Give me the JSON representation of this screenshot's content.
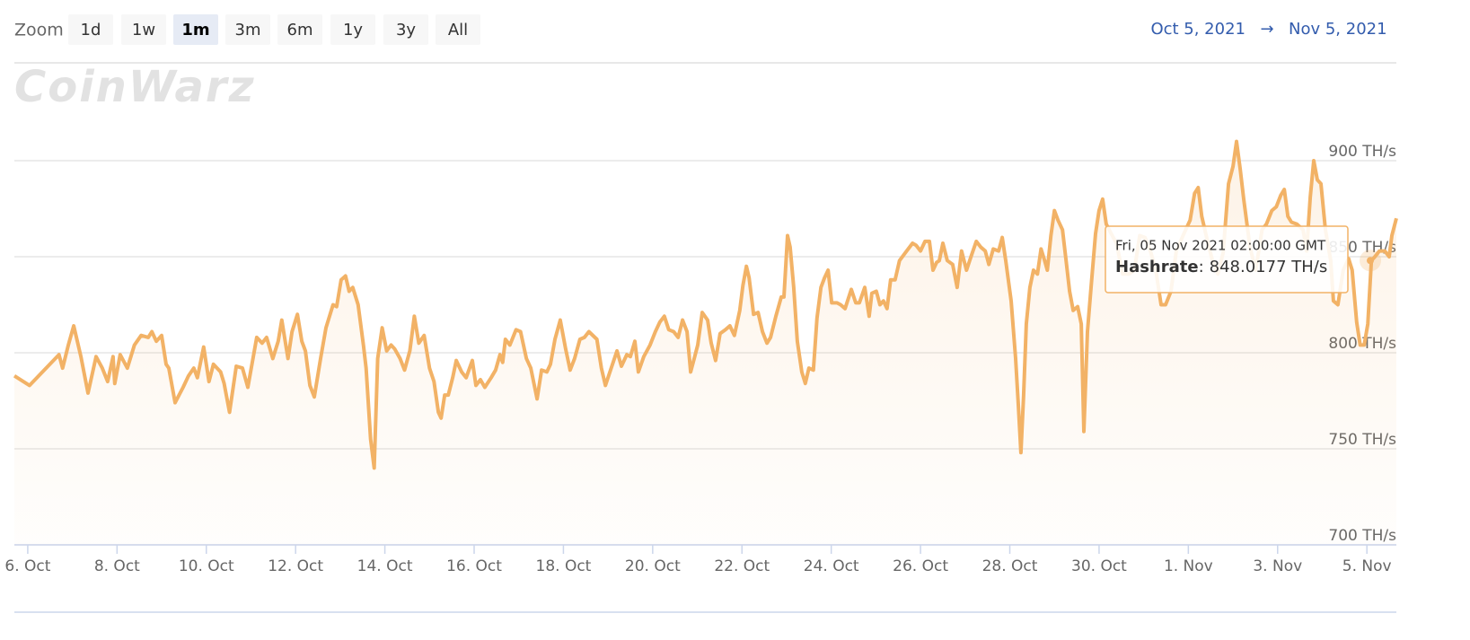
{
  "zoom": {
    "label": "Zoom",
    "buttons": [
      "1d",
      "1w",
      "1m",
      "3m",
      "6m",
      "1y",
      "3y",
      "All"
    ],
    "selected": "1m"
  },
  "range": {
    "from": "Oct 5, 2021",
    "arrow": "→",
    "to": "Nov 5, 2021"
  },
  "watermark": "CoinWarz",
  "chart_data": {
    "type": "area",
    "xlim": [
      5.7,
      36.66
    ],
    "xticks": [
      {
        "value": 6,
        "label": "6. Oct"
      },
      {
        "value": 8,
        "label": "8. Oct"
      },
      {
        "value": 10,
        "label": "10. Oct"
      },
      {
        "value": 12,
        "label": "12. Oct"
      },
      {
        "value": 14,
        "label": "14. Oct"
      },
      {
        "value": 16,
        "label": "16. Oct"
      },
      {
        "value": 18,
        "label": "18. Oct"
      },
      {
        "value": 20,
        "label": "20. Oct"
      },
      {
        "value": 22,
        "label": "22. Oct"
      },
      {
        "value": 24,
        "label": "24. Oct"
      },
      {
        "value": 26,
        "label": "26. Oct"
      },
      {
        "value": 28,
        "label": "28. Oct"
      },
      {
        "value": 30,
        "label": "30. Oct"
      },
      {
        "value": 32,
        "label": "1. Nov"
      },
      {
        "value": 34,
        "label": "3. Nov"
      },
      {
        "value": 36,
        "label": "5. Nov"
      }
    ],
    "ylim": [
      700,
      950
    ],
    "yticks": [
      {
        "value": 700,
        "label": "700 TH/s"
      },
      {
        "value": 750,
        "label": "750 TH/s"
      },
      {
        "value": 800,
        "label": "800 TH/s"
      },
      {
        "value": 850,
        "label": "850 TH/s"
      },
      {
        "value": 900,
        "label": "900 TH/s"
      }
    ],
    "grid": true,
    "series": [
      {
        "name": "Hashrate",
        "color": "#f2b266",
        "x": [
          5.7,
          6.04,
          6.7,
          6.78,
          6.91,
          7.03,
          7.19,
          7.35,
          7.53,
          7.67,
          7.79,
          7.91,
          7.95,
          8.07,
          8.23,
          8.39,
          8.54,
          8.7,
          8.78,
          8.88,
          9.0,
          9.1,
          9.16,
          9.3,
          9.48,
          9.6,
          9.72,
          9.8,
          9.94,
          10.06,
          10.16,
          10.32,
          10.4,
          10.52,
          10.67,
          10.81,
          10.93,
          11.13,
          11.25,
          11.35,
          11.49,
          11.61,
          11.69,
          11.83,
          11.92,
          12.04,
          12.14,
          12.22,
          12.32,
          12.42,
          12.56,
          12.68,
          12.84,
          12.92,
          13.02,
          13.12,
          13.2,
          13.28,
          13.4,
          13.52,
          13.58,
          13.68,
          13.76,
          13.84,
          13.94,
          14.04,
          14.14,
          14.22,
          14.34,
          14.44,
          14.56,
          14.66,
          14.76,
          14.88,
          15.0,
          15.1,
          15.2,
          15.26,
          15.34,
          15.42,
          15.52,
          15.6,
          15.72,
          15.82,
          15.96,
          16.04,
          16.14,
          16.24,
          16.38,
          16.48,
          16.58,
          16.64,
          16.7,
          16.8,
          16.94,
          17.04,
          17.17,
          17.27,
          17.41,
          17.51,
          17.63,
          17.71,
          17.81,
          17.93,
          18.05,
          18.15,
          18.25,
          18.37,
          18.47,
          18.57,
          18.75,
          18.85,
          18.94,
          19.1,
          19.2,
          19.3,
          19.42,
          19.5,
          19.6,
          19.68,
          19.8,
          19.94,
          20.06,
          20.16,
          20.26,
          20.36,
          20.47,
          20.57,
          20.67,
          20.77,
          20.85,
          20.93,
          21.01,
          21.11,
          21.23,
          21.31,
          21.41,
          21.51,
          21.63,
          21.73,
          21.83,
          21.95,
          22.02,
          22.1,
          22.16,
          22.26,
          22.36,
          22.46,
          22.56,
          22.64,
          22.76,
          22.88,
          22.94,
          23.02,
          23.08,
          23.16,
          23.24,
          23.34,
          23.42,
          23.5,
          23.6,
          23.68,
          23.77,
          23.85,
          23.93,
          24.01,
          24.13,
          24.21,
          24.31,
          24.45,
          24.55,
          24.63,
          24.75,
          24.85,
          24.91,
          25.01,
          25.09,
          25.17,
          25.25,
          25.33,
          25.43,
          25.53,
          25.69,
          25.82,
          25.9,
          26.0,
          26.1,
          26.2,
          26.28,
          26.36,
          26.42,
          26.5,
          26.6,
          26.72,
          26.82,
          26.92,
          27.03,
          27.13,
          27.25,
          27.35,
          27.45,
          27.53,
          27.63,
          27.75,
          27.83,
          27.91,
          28.03,
          28.13,
          28.19,
          28.25,
          28.31,
          28.37,
          28.45,
          28.53,
          28.62,
          28.7,
          28.78,
          28.84,
          28.92,
          29.0,
          29.08,
          29.18,
          29.26,
          29.34,
          29.42,
          29.52,
          29.6,
          29.66,
          29.74,
          29.82,
          29.92,
          30.0,
          30.08,
          30.16,
          30.27,
          30.39,
          30.53,
          30.67,
          30.79,
          30.91,
          31.03,
          31.15,
          31.27,
          31.39,
          31.49,
          31.61,
          31.73,
          31.9,
          32.04,
          32.14,
          32.22,
          32.3,
          32.44,
          32.54,
          32.66,
          32.78,
          32.9,
          33.0,
          33.08,
          33.16,
          33.24,
          33.38,
          33.51,
          33.65,
          33.75,
          33.87,
          33.97,
          34.07,
          34.15,
          34.23,
          34.31,
          34.43,
          34.57,
          34.65,
          34.73,
          34.81,
          34.89,
          34.97,
          35.07,
          35.19,
          35.25,
          35.35,
          35.47,
          35.59,
          35.67,
          35.77,
          35.85,
          35.94,
          36.02,
          36.1,
          36.18,
          36.28,
          36.4,
          36.5,
          36.56,
          36.66
        ],
        "values": [
          788,
          783,
          799,
          792,
          804,
          814,
          798,
          779,
          798,
          792,
          785,
          798,
          784,
          799,
          792,
          804,
          809,
          808,
          811,
          806,
          809,
          794,
          792,
          774,
          782,
          788,
          792,
          787,
          803,
          785,
          794,
          790,
          784,
          769,
          793,
          792,
          782,
          808,
          805,
          808,
          797,
          806,
          817,
          797,
          811,
          820,
          806,
          801,
          783,
          777,
          797,
          813,
          825,
          824,
          838,
          840,
          832,
          834,
          825,
          804,
          792,
          755,
          740,
          797,
          813,
          801,
          804,
          802,
          797,
          791,
          801,
          819,
          805,
          809,
          792,
          785,
          769,
          766,
          778,
          778,
          787,
          796,
          790,
          787,
          796,
          783,
          786,
          782,
          787,
          791,
          799,
          795,
          807,
          804,
          812,
          811,
          797,
          792,
          776,
          791,
          790,
          794,
          807,
          817,
          802,
          791,
          797,
          807,
          808,
          811,
          807,
          792,
          783,
          794,
          801,
          793,
          799,
          798,
          806,
          790,
          798,
          804,
          811,
          816,
          819,
          812,
          811,
          808,
          817,
          811,
          790,
          797,
          804,
          821,
          817,
          805,
          796,
          810,
          812,
          814,
          809,
          822,
          835,
          845,
          839,
          820,
          821,
          811,
          805,
          808,
          819,
          829,
          829,
          861,
          855,
          834,
          806,
          790,
          784,
          792,
          791,
          818,
          834,
          839,
          843,
          826,
          826,
          825,
          823,
          833,
          826,
          826,
          834,
          819,
          831,
          832,
          825,
          827,
          823,
          838,
          838,
          848,
          853,
          857,
          856,
          853,
          858,
          858,
          843,
          847,
          848,
          857,
          848,
          846,
          834,
          853,
          843,
          850,
          858,
          855,
          853,
          846,
          854,
          853,
          860,
          848,
          827,
          797,
          773,
          748,
          778,
          815,
          834,
          843,
          841,
          854,
          848,
          843,
          861,
          874,
          869,
          864,
          848,
          832,
          822,
          824,
          815,
          759,
          811,
          834,
          862,
          874,
          880,
          867,
          862,
          857,
          841,
          841,
          843,
          861,
          860,
          853,
          843,
          825,
          825,
          832,
          853,
          862,
          869,
          883,
          886,
          871,
          857,
          848,
          841,
          852,
          888,
          897,
          910,
          896,
          880,
          855,
          843,
          864,
          867,
          874,
          876,
          882,
          885,
          871,
          868,
          867,
          864,
          853,
          881,
          900,
          890,
          888,
          864,
          848,
          827,
          825,
          843,
          849,
          843,
          816,
          804,
          804,
          815,
          848,
          850,
          853,
          853,
          850,
          861,
          870
        ]
      }
    ],
    "tooltip": {
      "header": "Fri, 05 Nov 2021 02:00:00 GMT",
      "separator": ":",
      "value": 848.0177,
      "value_label": "848.0177 TH/s"
    }
  }
}
